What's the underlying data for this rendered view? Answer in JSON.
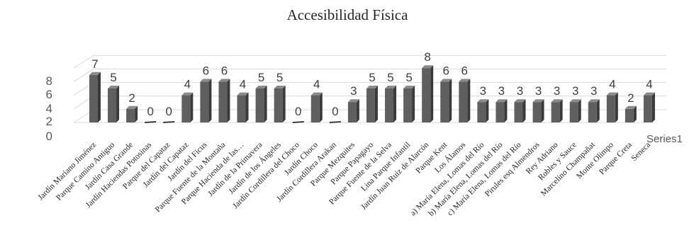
{
  "chart_data": {
    "type": "bar",
    "title": "Accesibilidad Física",
    "series_name": "Series1",
    "ylim": [
      0,
      8
    ],
    "yticks": [
      "0",
      "2",
      "4",
      "6",
      "8"
    ],
    "grid": true,
    "categories": [
      "Jardín Mariano Jiménez",
      "Parque Camino Antiguo",
      "Jardín Casa Grande",
      "Jardín Haciendas Potosinas",
      "Parque del Capataz",
      "Jardín del Capataz",
      "Jardín del Ficus",
      "Parque Fuente de la Montaña",
      "Parque Hacienda de las…",
      "Jardín de la Primavera",
      "Jardín de los Ángeles",
      "Jardín Cordillera del Choco",
      "Jardín Choco",
      "Jardín Cordillera Arakan",
      "Parque Mezquites",
      "Parque Papagayo",
      "Parque Fuente de la Selva",
      "Lina Parque Infantil",
      "Jardín Juan Ruiz de Alarcón",
      "Parque Kent",
      "Los Álamos",
      "a) María Elena, Lomas del Río",
      "b) María Elena, Lomas del Río",
      "c) María Elena, Lomas del Río",
      "Pirules esq Almendros",
      "Rey Adriano",
      "Robles y Sauce",
      "Marcelino Champañat",
      "Monte Olimpo",
      "Parque Creta",
      "Seneca"
    ],
    "values": [
      7,
      5,
      2,
      0,
      0,
      4,
      6,
      6,
      4,
      5,
      5,
      0,
      4,
      0,
      3,
      5,
      5,
      5,
      8,
      6,
      6,
      3,
      3,
      3,
      3,
      3,
      3,
      3,
      4,
      2,
      4
    ],
    "colors": {
      "bar_front": "#5f5f5f",
      "bar_side": "#3a3a3a",
      "bar_top": "#8a8a8a",
      "grid": "#d9d9d9"
    }
  }
}
